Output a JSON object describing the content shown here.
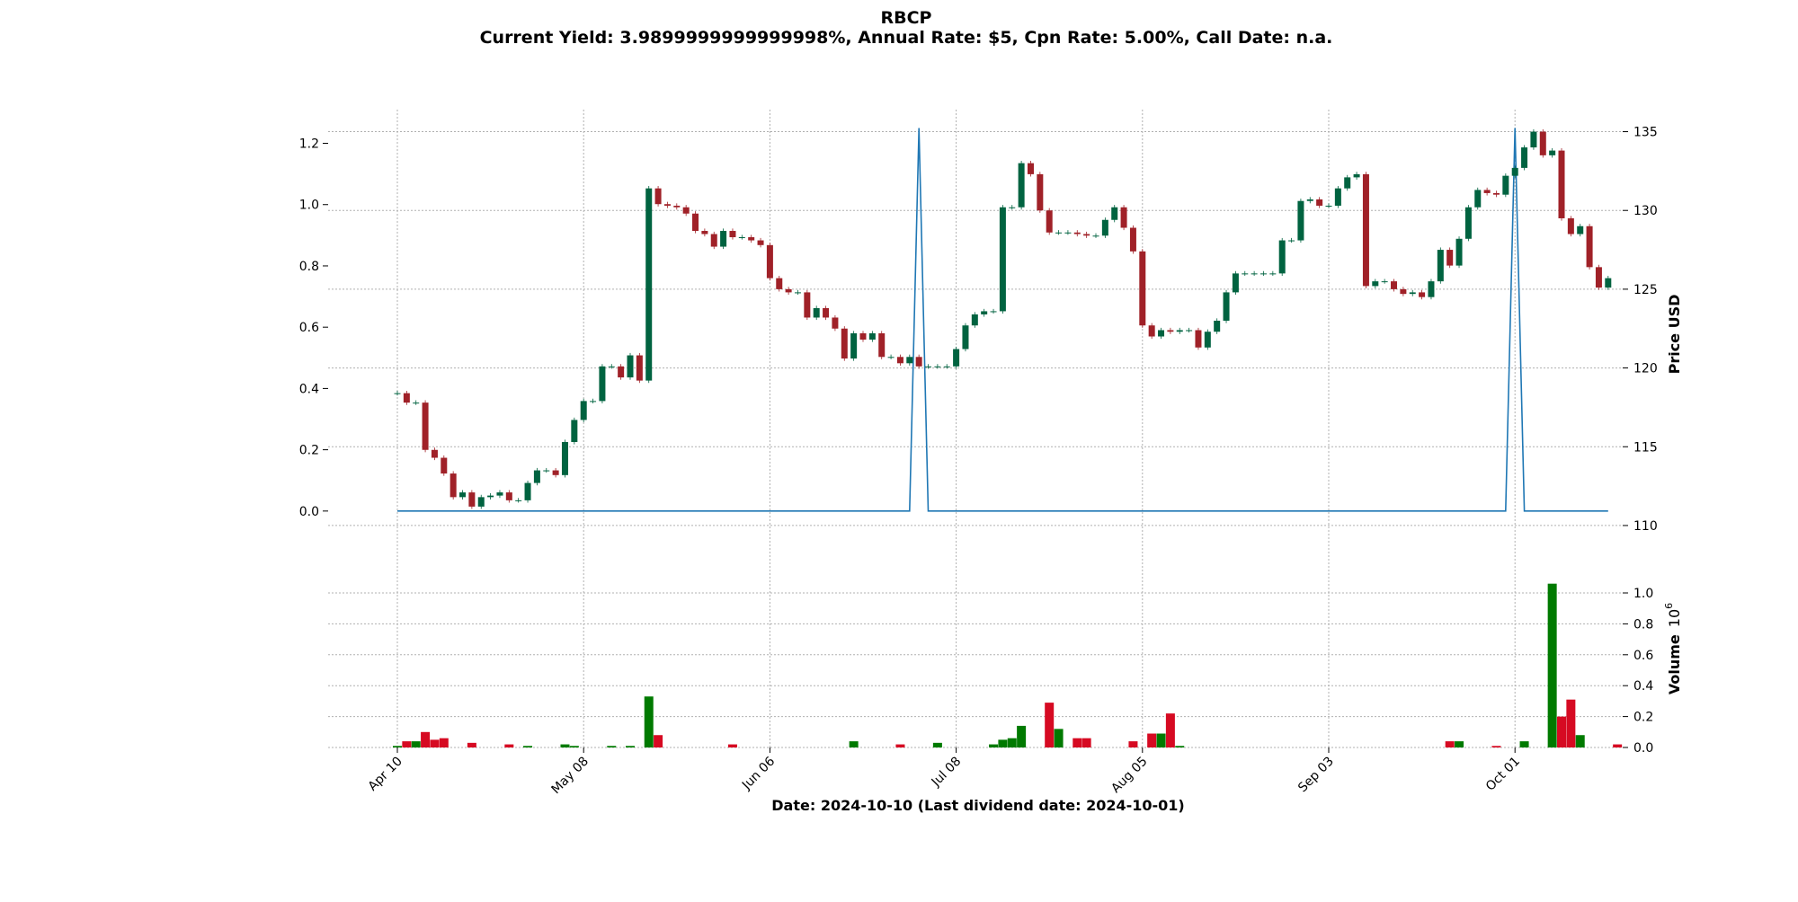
{
  "chart_data": {
    "type": "candlestick",
    "title": "RBCP",
    "subtitle": "Current Yield: 3.9899999999999998%, Annual Rate: $5, Cpn Rate: 5.00%, Call Date: n.a.",
    "xlabel": "Date: 2024-10-10   (Last dividend date: 2024-10-01)",
    "y_right_label": "Price USD",
    "volume_label": "Volume",
    "volume_exponent": "6",
    "x_ticks": [
      {
        "label": "Apr 10",
        "index": 0
      },
      {
        "label": "May 08",
        "index": 20
      },
      {
        "label": "Jun 06",
        "index": 40
      },
      {
        "label": "Jul 08",
        "index": 60
      },
      {
        "label": "Aug 05",
        "index": 80
      },
      {
        "label": "Sep 03",
        "index": 100
      },
      {
        "label": "Oct 01",
        "index": 120
      }
    ],
    "price_ticks": [
      "110",
      "115",
      "120",
      "125",
      "130",
      "135"
    ],
    "price_range": [
      108.0,
      136.4
    ],
    "dividend_ticks": [
      "0.0",
      "0.2",
      "0.4",
      "0.6",
      "0.8",
      "1.0",
      "1.2"
    ],
    "dividend_range": [
      -0.15,
      1.31
    ],
    "volume_ticks": [
      "0.0",
      "0.2",
      "0.4",
      "0.6",
      "0.8",
      "1.0"
    ],
    "volume_range": [
      0,
      1.0
    ],
    "grid": true,
    "up_color": "#006340",
    "down_color": "#A02128",
    "vol_up_color": "#007a00",
    "vol_down_color": "#d60a22",
    "dividend_color": "#1f77b4",
    "closes": [
      118.4,
      117.8,
      117.8,
      114.8,
      114.3,
      113.3,
      111.8,
      112.1,
      111.2,
      111.8,
      111.9,
      112.1,
      111.6,
      111.6,
      112.7,
      113.5,
      113.5,
      113.2,
      115.3,
      116.7,
      117.9,
      117.9,
      120.1,
      120.1,
      119.4,
      120.8,
      119.2,
      131.4,
      130.4,
      130.3,
      130.2,
      129.8,
      128.7,
      128.5,
      127.7,
      128.7,
      128.3,
      128.3,
      128.1,
      127.8,
      125.7,
      125.0,
      124.8,
      124.8,
      123.2,
      123.8,
      123.2,
      122.5,
      120.6,
      122.2,
      121.8,
      122.2,
      120.7,
      120.7,
      120.3,
      120.7,
      120.1,
      120.1,
      120.1,
      120.1,
      121.2,
      122.7,
      123.4,
      123.6,
      123.6,
      130.2,
      130.2,
      133.0,
      132.3,
      130.0,
      128.6,
      128.6,
      128.6,
      128.5,
      128.4,
      128.4,
      129.4,
      130.2,
      128.9,
      127.4,
      122.7,
      122.0,
      122.4,
      122.3,
      122.4,
      122.4,
      121.3,
      122.3,
      123.0,
      124.8,
      126.0,
      126.0,
      126.0,
      126.0,
      126.0,
      128.1,
      128.1,
      130.6,
      130.7,
      130.3,
      130.3,
      131.4,
      132.1,
      132.3,
      125.2,
      125.5,
      125.5,
      125.0,
      124.7,
      124.8,
      124.5,
      125.5,
      127.5,
      126.5,
      128.2,
      130.2,
      131.3,
      131.1,
      131.0,
      132.2,
      132.7,
      134.0,
      135.0,
      133.5,
      133.8,
      129.5,
      128.5,
      129.0,
      126.4,
      125.1,
      125.7
    ],
    "volumes": [
      0.01,
      0.04,
      0.04,
      0.1,
      0.05,
      0.06,
      0.0,
      0.0,
      0.03,
      0.0,
      0.0,
      0.0,
      0.02,
      0.0,
      0.01,
      0.0,
      0.0,
      0.0,
      0.02,
      0.01,
      0.0,
      0.0,
      0.0,
      0.01,
      0.0,
      0.01,
      0.0,
      0.33,
      0.08,
      0.0,
      0.0,
      0.0,
      0.0,
      0.0,
      0.0,
      0.0,
      0.02,
      0.0,
      0.0,
      0.0,
      0.0,
      0.0,
      0.0,
      0.0,
      0.0,
      0.0,
      0.0,
      0.0,
      0.0,
      0.04,
      0.0,
      0.0,
      0.0,
      0.0,
      0.02,
      0.0,
      0.0,
      0.0,
      0.03,
      0.0,
      0.0,
      0.0,
      0.0,
      0.0,
      0.02,
      0.05,
      0.06,
      0.14,
      0.0,
      0.0,
      0.29,
      0.12,
      0.0,
      0.06,
      0.06,
      0.0,
      0.0,
      0.0,
      0.0,
      0.04,
      0.0,
      0.09,
      0.09,
      0.22,
      0.01,
      0.0,
      0.0,
      0.0,
      0.0,
      0.0,
      0.0,
      0.0,
      0.0,
      0.0,
      0.0,
      0.0,
      0.0,
      0.0,
      0.0,
      0.0,
      0.0,
      0.0,
      0.0,
      0.0,
      0.0,
      0.0,
      0.0,
      0.0,
      0.0,
      0.0,
      0.0,
      0.0,
      0.0,
      0.04,
      0.04,
      0.0,
      0.0,
      0.0,
      0.01,
      0.0,
      0.0,
      0.04,
      0.0,
      0.0,
      1.06,
      0.2,
      0.31,
      0.08,
      0.0,
      0.0,
      0.0,
      0.02,
      0.0,
      0.0,
      0.0
    ],
    "dividends": [
      {
        "index": 56,
        "value": 1.25
      },
      {
        "index": 120,
        "value": 1.25
      }
    ]
  }
}
